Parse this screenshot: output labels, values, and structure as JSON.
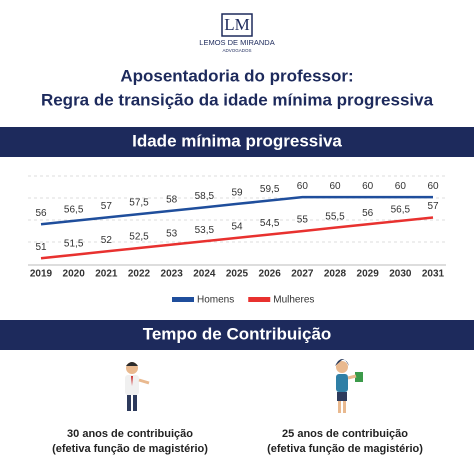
{
  "header": {
    "logo_mark": "LM",
    "brand": "LEMOS DE MIRANDA",
    "brand_sub": "ADVOGADOS",
    "title_lines": [
      "Aposentadoria do professor:",
      "Regra de transição da idade mínima progressiva"
    ]
  },
  "chart_data": {
    "type": "line",
    "title": "Idade mínima progressiva",
    "categories": [
      "2019",
      "2020",
      "2021",
      "2022",
      "2023",
      "2024",
      "2025",
      "2026",
      "2027",
      "2028",
      "2029",
      "2030",
      "2031"
    ],
    "series": [
      {
        "name": "Homens",
        "color": "#1f4e9c",
        "values": [
          56,
          56.5,
          57,
          57.5,
          58,
          58.5,
          59,
          59.5,
          60,
          60,
          60,
          60,
          60
        ],
        "value_labels": [
          "56",
          "56,5",
          "57",
          "57,5",
          "58",
          "58,5",
          "59",
          "59,5",
          "60",
          "60",
          "60",
          "60",
          "60"
        ]
      },
      {
        "name": "Mulheres",
        "color": "#e8312f",
        "values": [
          51,
          51.5,
          52,
          52.5,
          53,
          53.5,
          54,
          54.5,
          55,
          55.5,
          56,
          56.5,
          57
        ],
        "value_labels": [
          "51",
          "51,5",
          "52",
          "52,5",
          "53",
          "53,5",
          "54",
          "54,5",
          "55",
          "55,5",
          "56",
          "56,5",
          "57"
        ]
      }
    ],
    "ylim": [
      50,
      64
    ],
    "legend": "bottom"
  },
  "contribution": {
    "title": "Tempo de Contribuição",
    "items": [
      {
        "line1": "30 anos de contribuição",
        "line2": "(efetiva função de magistério)"
      },
      {
        "line1": "25 anos de contribuição",
        "line2": "(efetiva função de magistério)"
      }
    ]
  }
}
